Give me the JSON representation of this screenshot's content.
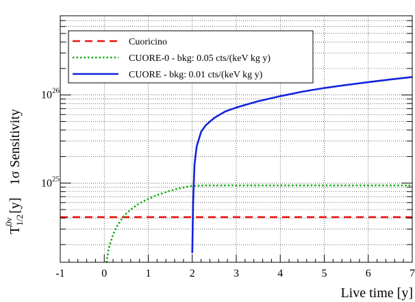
{
  "chart_data": {
    "type": "line",
    "xlabel": "Live time [y]",
    "ylabel": {
      "base": "T",
      "sup": "0ν",
      "sub": "1/2",
      "unit": "[y]",
      "suffix": "1σ  Sensitivity"
    },
    "xlim": [
      -1,
      7
    ],
    "ylim_log10": [
      24.1,
      26.9
    ],
    "y_scale": "log",
    "grid": true,
    "legend_position": "top-left",
    "x_ticks": [
      "-1",
      "0",
      "1",
      "2",
      "3",
      "4",
      "5",
      "6",
      "7"
    ],
    "y_ticks": [
      {
        "value": 1e+25,
        "base": "10",
        "exp": "25"
      },
      {
        "value": 1e+26,
        "base": "10",
        "exp": "26"
      }
    ],
    "series": [
      {
        "name": "Cuoricino",
        "color": "#ee1111",
        "style": "dashed",
        "x": [
          -1,
          7
        ],
        "y": [
          4.1e+24,
          4.1e+24
        ]
      },
      {
        "name": "CUORE-0 - bkg: 0.05 cts/(keV kg y)",
        "color": "#11aa11",
        "style": "dotted",
        "x": [
          0.05,
          0.1,
          0.2,
          0.3,
          0.4,
          0.5,
          0.6,
          0.8,
          1.0,
          1.2,
          1.5,
          1.8,
          2.0,
          2.3,
          3.0,
          4.0,
          5.0,
          6.0,
          7.0
        ],
        "y": [
          1.25e+24,
          1.8e+24,
          2.6e+24,
          3.3e+24,
          3.9e+24,
          4.5e+24,
          5e+24,
          5.9e+24,
          6.6e+24,
          7.3e+24,
          8.2e+24,
          8.9e+24,
          9.3e+24,
          9.4e+24,
          9.4e+24,
          9.4e+24,
          9.4e+24,
          9.4e+24,
          9.4e+24
        ]
      },
      {
        "name": "CUORE - bkg: 0.01 cts/(keV kg y)",
        "color": "#1122dd",
        "style": "solid",
        "x": [
          2.0,
          2.02,
          2.05,
          2.1,
          2.2,
          2.3,
          2.5,
          2.75,
          3.0,
          3.5,
          4.0,
          4.5,
          5.0,
          5.5,
          6.0,
          6.5,
          7.0
        ],
        "y": [
          1.6e+24,
          6e+24,
          1.6e+25,
          2.6e+25,
          3.8e+25,
          4.5e+25,
          5.5e+25,
          6.5e+25,
          7.2e+25,
          8.5e+25,
          9.7e+25,
          1.09e+26,
          1.2e+26,
          1.3e+26,
          1.4e+26,
          1.5e+26,
          1.6e+26
        ]
      }
    ]
  }
}
